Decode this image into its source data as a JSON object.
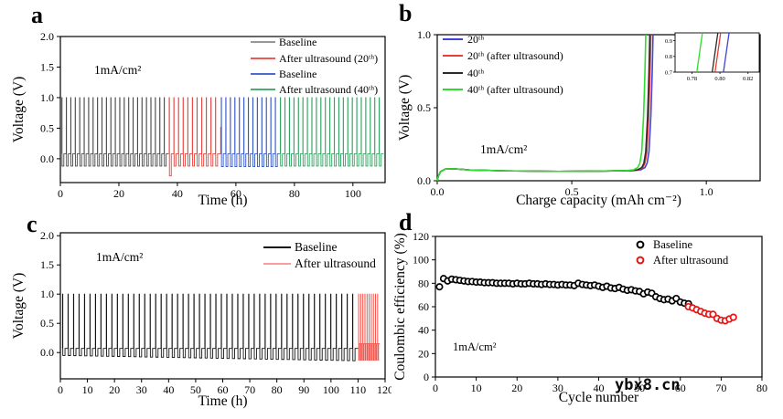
{
  "figure": {
    "background": "#ffffff",
    "watermark": "ybx8.cn",
    "watermark_color": "#0a0a0a"
  },
  "chart_data": [
    {
      "panel": "a",
      "type": "line",
      "subtype": "pulse",
      "xlabel": "Time (h)",
      "ylabel": "Voltage (V)",
      "annotation": "1mA/cm²",
      "xlim": [
        0,
        111
      ],
      "ylim": [
        -0.39,
        2.0
      ],
      "xticks": {
        "values": [
          0,
          20,
          40,
          60,
          80,
          100
        ],
        "labels": [
          "0",
          "20",
          "40",
          "60",
          "80",
          "100"
        ]
      },
      "yticks": {
        "values": [
          0.0,
          0.5,
          1.0,
          1.5,
          2.0
        ],
        "labels": [
          "0.0",
          "0.5",
          "1.0",
          "1.5",
          "2.0"
        ]
      },
      "legend": [
        {
          "label": "Baseline",
          "color": "#8a8a8a"
        },
        {
          "label": "After ultrasound (20ᵗʰ)",
          "color": "#e8433c"
        },
        {
          "label": "Baseline",
          "color": "#3157c8"
        },
        {
          "label": "After ultrasound (40ᵗʰ)",
          "color": "#2fa35f"
        }
      ],
      "segments": [
        {
          "name": "baseline-1",
          "color": "#4a4a4a",
          "t0": 0.5,
          "t1": 37,
          "cycles": 24,
          "high": 1.0,
          "hp": 0.08,
          "lp": -0.12
        },
        {
          "name": "after-ultrasound-20th",
          "color": "#e8433c",
          "t0": 37.2,
          "t1": 54.6,
          "cycles": 11,
          "high": 1.0,
          "hp": 0.08,
          "lp": -0.12,
          "start_dip": -0.28,
          "end_spike": 0.52
        },
        {
          "name": "baseline-2",
          "color": "#3157c8",
          "t0": 55.0,
          "t1": 75,
          "cycles": 13,
          "high": 1.0,
          "hp": 0.08,
          "lp": -0.13
        },
        {
          "name": "after-ultrasound-40th",
          "color": "#2fa35f",
          "t0": 75.2,
          "t1": 110.5,
          "cycles": 23,
          "high": 1.0,
          "hp": 0.08,
          "lp": -0.12
        }
      ]
    },
    {
      "panel": "b",
      "type": "line",
      "subtype": "cv",
      "xlabel": "Charge capacity (mAh cm⁻²)",
      "ylabel": "Voltage (V)",
      "annotation": "1mA/cm²",
      "xlim": [
        0,
        1.2
      ],
      "ylim": [
        0,
        1.0
      ],
      "xticks": {
        "values": [
          0.0,
          0.5,
          1.0
        ],
        "labels": [
          "0.0",
          "0.5",
          "1.0"
        ]
      },
      "yticks": {
        "values": [
          0.0,
          0.5,
          1.0
        ],
        "labels": [
          "0.0",
          "0.5",
          "1.0"
        ]
      },
      "legend": [
        {
          "label": "20ᵗʰ",
          "color": "#4343d8"
        },
        {
          "label": "20ᵗʰ (after ultrasound)",
          "color": "#ef3b36"
        },
        {
          "label": "40ᵗʰ",
          "color": "#2b2b2b"
        },
        {
          "label": "40ᵗʰ (after ultrasound)",
          "color": "#2ede2e"
        }
      ],
      "series": [
        {
          "name": "20th",
          "color": "#4343d8",
          "end": 0.802
        },
        {
          "name": "20th-after-ultrasound",
          "color": "#ef3b36",
          "end": 0.794
        },
        {
          "name": "40th",
          "color": "#2b2b2b",
          "end": 0.79
        },
        {
          "name": "40th-after-ultrasound",
          "color": "#2ede2e",
          "end": 0.775
        }
      ],
      "inset": {
        "xlim": [
          0.768,
          0.828
        ],
        "ylim": [
          0.7,
          0.95
        ],
        "xticks": {
          "values": [
            0.78,
            0.8,
            0.82
          ],
          "labels": [
            "0.78",
            "0.80",
            "0.82"
          ]
        },
        "yticks": {
          "values": [
            0.7,
            0.8,
            0.9
          ],
          "labels": [
            "0.7",
            "0.8",
            "0.9"
          ]
        },
        "lines": [
          {
            "name": "40th-after-ultrasound",
            "color": "#2ede2e",
            "x": 0.7835
          },
          {
            "name": "40th",
            "color": "#2b2b2b",
            "x": 0.7945
          },
          {
            "name": "20th-after-ultrasound",
            "color": "#ef3b36",
            "x": 0.7965
          },
          {
            "name": "20th",
            "color": "#4343d8",
            "x": 0.8025
          }
        ]
      }
    },
    {
      "panel": "c",
      "type": "line",
      "subtype": "pulse",
      "xlabel": "Time (h)",
      "ylabel": "Voltage (V)",
      "annotation": "1mA/cm²",
      "xlim": [
        0,
        120
      ],
      "ylim": [
        -0.45,
        2.05
      ],
      "xticks": {
        "values": [
          0,
          10,
          20,
          30,
          40,
          50,
          60,
          70,
          80,
          90,
          100,
          110,
          120
        ],
        "labels": [
          "0",
          "10",
          "20",
          "30",
          "40",
          "50",
          "60",
          "70",
          "80",
          "90",
          "100",
          "110",
          "120"
        ]
      },
      "yticks": {
        "values": [
          0.0,
          0.5,
          1.0,
          1.5,
          2.0
        ],
        "labels": [
          "0.0",
          "0.5",
          "1.0",
          "1.5",
          "2.0"
        ]
      },
      "legend": [
        {
          "label": "Baseline",
          "color": "#111111",
          "width": 2.0
        },
        {
          "label": "After ultrasound",
          "color": "#f4655e",
          "width": 1.2
        }
      ],
      "segments": [
        {
          "name": "baseline",
          "color": "#141414",
          "t0": 0.8,
          "t1": 110,
          "cycles": 54,
          "high": 1.0,
          "hp": 0.07,
          "lp": -0.05,
          "lp_end": -0.14
        },
        {
          "name": "after-ultrasound",
          "color": "#f0554d",
          "t0": 110.2,
          "t1": 118,
          "cycles": 10,
          "high": 1.0,
          "hp": 0.15,
          "lp": -0.13
        }
      ]
    },
    {
      "panel": "d",
      "type": "scatter",
      "xlabel": "Cycle number",
      "ylabel": "Coulombic efficiency (%)",
      "annotation": "1mA/cm²",
      "xlim": [
        0,
        80
      ],
      "ylim": [
        0,
        120
      ],
      "xticks": {
        "values": [
          0,
          10,
          20,
          30,
          40,
          50,
          60,
          70,
          80
        ],
        "labels": [
          "0",
          "10",
          "20",
          "30",
          "40",
          "50",
          "60",
          "70",
          "80"
        ]
      },
      "yticks": {
        "values": [
          0,
          20,
          40,
          60,
          80,
          100,
          120
        ],
        "labels": [
          "0",
          "20",
          "40",
          "60",
          "80",
          "100",
          "120"
        ]
      },
      "legend": [
        {
          "label": "Baseline",
          "color": "#000000"
        },
        {
          "label": "After ultrasound",
          "color": "#e81313"
        }
      ],
      "series": [
        {
          "name": "baseline",
          "color": "#000000",
          "x_start": 1,
          "y": [
            77,
            84,
            82,
            83.5,
            83,
            82.5,
            82,
            81.5,
            81.5,
            81,
            81,
            80.5,
            80.5,
            80.5,
            80,
            80,
            80,
            80,
            79.5,
            80,
            79.5,
            79.5,
            80,
            79.5,
            79.5,
            79,
            79.5,
            79,
            79,
            78.5,
            79,
            78.5,
            78.5,
            78,
            80,
            79,
            78.5,
            78,
            78.5,
            77.5,
            76.5,
            77.5,
            76,
            75.5,
            76.5,
            75,
            74,
            74.5,
            73.5,
            73,
            71,
            72.5,
            71.5,
            68.5,
            67,
            66,
            66.5,
            65,
            67,
            64,
            63,
            62.5
          ]
        },
        {
          "name": "after-ultrasound",
          "color": "#e81313",
          "x_start": 62,
          "y": [
            60,
            59,
            57.5,
            56,
            54.5,
            53.5,
            53.5,
            50,
            48.5,
            48,
            49.5,
            51
          ]
        }
      ]
    }
  ]
}
